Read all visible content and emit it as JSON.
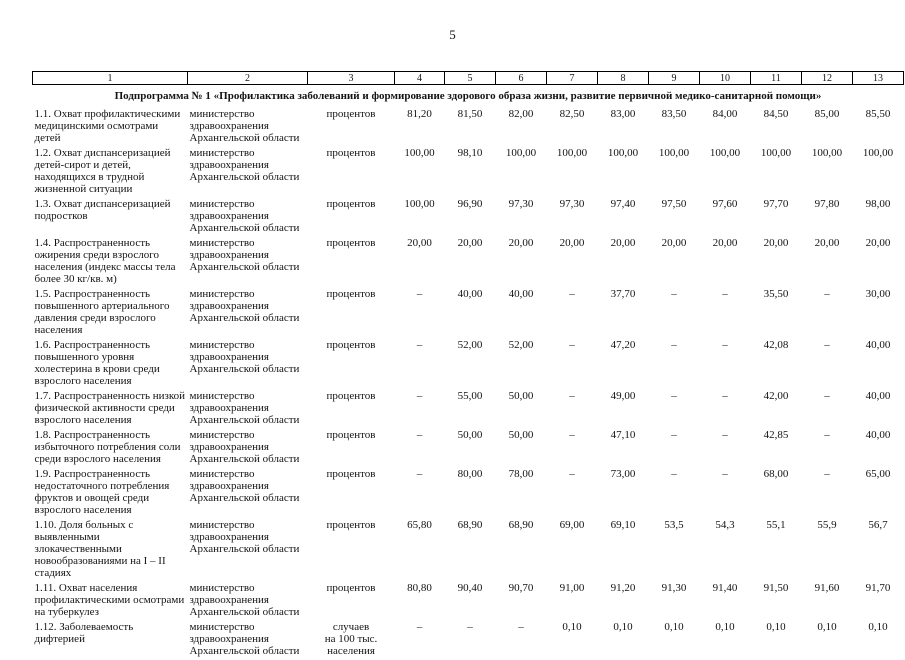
{
  "page": {
    "number": "5"
  },
  "table": {
    "column_numbers": [
      "1",
      "2",
      "3",
      "4",
      "5",
      "6",
      "7",
      "8",
      "9",
      "10",
      "11",
      "12",
      "13"
    ],
    "subtitle": "Подпрограмма № 1 «Профилактика заболеваний и формирование здорового образа жизни, развитие первичной медико-санитарной помощи»",
    "rows": [
      {
        "indicator": "1.1. Охват профилактическими медицинскими осмотрами детей",
        "executor": "министерство\nздравоохранения\nАрхангельской области",
        "unit": "процентов",
        "values": [
          "81,20",
          "81,50",
          "82,00",
          "82,50",
          "83,00",
          "83,50",
          "84,00",
          "84,50",
          "85,00",
          "85,50"
        ]
      },
      {
        "indicator": "1.2. Охват диспансеризацией детей-сирот и детей, находящихся в трудной жизненной ситуации",
        "executor": "министерство\nздравоохранения\nАрхангельской области",
        "unit": "процентов",
        "values": [
          "100,00",
          "98,10",
          "100,00",
          "100,00",
          "100,00",
          "100,00",
          "100,00",
          "100,00",
          "100,00",
          "100,00"
        ]
      },
      {
        "indicator": "1.3. Охват диспансеризацией подростков",
        "executor": "министерство\nздравоохранения\nАрхангельской области",
        "unit": "процентов",
        "values": [
          "100,00",
          "96,90",
          "97,30",
          "97,30",
          "97,40",
          "97,50",
          "97,60",
          "97,70",
          "97,80",
          "98,00"
        ]
      },
      {
        "indicator": "1.4. Распространенность ожирения среди взрослого населения (индекс массы тела более 30 кг/кв. м)",
        "executor": "министерство\nздравоохранения\nАрхангельской области",
        "unit": "процентов",
        "values": [
          "20,00",
          "20,00",
          "20,00",
          "20,00",
          "20,00",
          "20,00",
          "20,00",
          "20,00",
          "20,00",
          "20,00"
        ]
      },
      {
        "indicator": "1.5. Распространенность повышенного артериального давления среди взрослого населения",
        "executor": "министерство\nздравоохранения\nАрхангельской области",
        "unit": "процентов",
        "values": [
          "–",
          "40,00",
          "40,00",
          "–",
          "37,70",
          "–",
          "–",
          "35,50",
          "–",
          "30,00"
        ]
      },
      {
        "indicator": "1.6. Распространенность повышенного уровня холестерина в крови среди взрослого населения",
        "executor": "министерство\nздравоохранения\nАрхангельской области",
        "unit": "процентов",
        "values": [
          "–",
          "52,00",
          "52,00",
          "–",
          "47,20",
          "–",
          "–",
          "42,08",
          "–",
          "40,00"
        ]
      },
      {
        "indicator": "1.7. Распространенность низкой физической активности среди взрослого населения",
        "executor": "министерство\nздравоохранения\nАрхангельской области",
        "unit": "процентов",
        "values": [
          "–",
          "55,00",
          "50,00",
          "–",
          "49,00",
          "–",
          "–",
          "42,00",
          "–",
          "40,00"
        ]
      },
      {
        "indicator": "1.8. Распространенность избыточного потребления соли среди взрослого населения",
        "executor": "министерство\nздравоохранения\nАрхангельской области",
        "unit": "процентов",
        "values": [
          "–",
          "50,00",
          "50,00",
          "–",
          "47,10",
          "–",
          "–",
          "42,85",
          "–",
          "40,00"
        ]
      },
      {
        "indicator": "1.9. Распространенность недостаточного потребления фруктов и овощей среди взрослого населения",
        "executor": "министерство\nздравоохранения\nАрхангельской области",
        "unit": "процентов",
        "values": [
          "–",
          "80,00",
          "78,00",
          "–",
          "73,00",
          "–",
          "–",
          "68,00",
          "–",
          "65,00"
        ]
      },
      {
        "indicator": "1.10. Доля больных с выявленными злокачественными новообразованиями на I – II стадиях",
        "executor": "министерство\nздравоохранения\nАрхангельской области",
        "unit": "процентов",
        "values": [
          "65,80",
          "68,90",
          "68,90",
          "69,00",
          "69,10",
          "53,5",
          "54,3",
          "55,1",
          "55,9",
          "56,7"
        ]
      },
      {
        "indicator": "1.11. Охват населения профилактическими осмотрами на туберкулез",
        "executor": "министерство\nздравоохранения\nАрхангельской области",
        "unit": "процентов",
        "values": [
          "80,80",
          "90,40",
          "90,70",
          "91,00",
          "91,20",
          "91,30",
          "91,40",
          "91,50",
          "91,60",
          "91,70"
        ]
      },
      {
        "indicator": "1.12. Заболеваемость дифтерией",
        "executor": "министерство\nздравоохранения\nАрхангельской области",
        "unit": "случаев\nна 100 тыс.\nнаселения",
        "values": [
          "–",
          "–",
          "–",
          "0,10",
          "0,10",
          "0,10",
          "0,10",
          "0,10",
          "0,10",
          "0,10"
        ]
      }
    ]
  }
}
